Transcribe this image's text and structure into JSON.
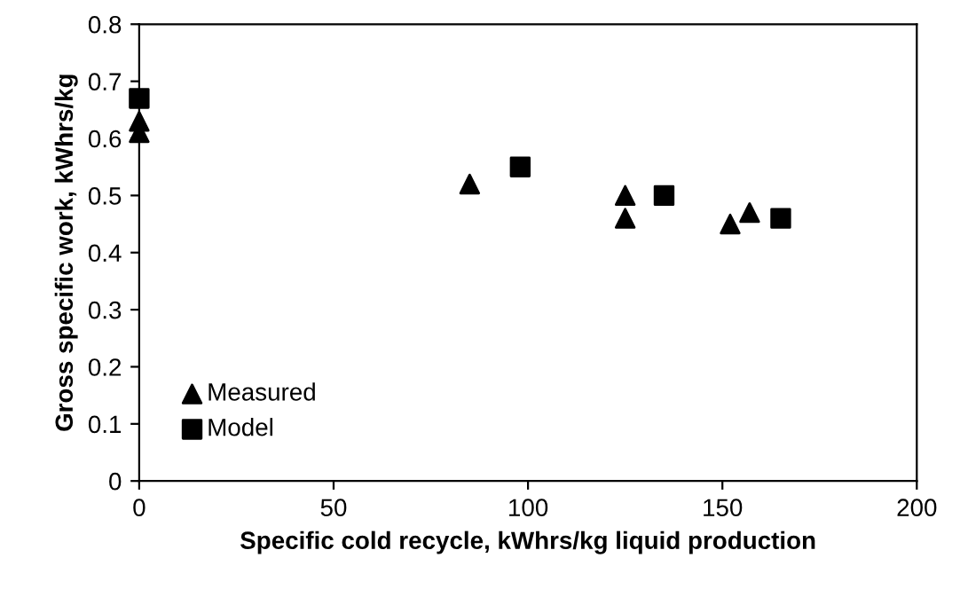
{
  "chart_data": {
    "type": "scatter",
    "xlabel": "Specific cold recycle, kWhrs/kg liquid production",
    "ylabel": "Gross specific work, kWhrs/kg",
    "series": [
      {
        "name": "Measured",
        "color": "#000000",
        "marker": "triangle",
        "x": [
          0,
          0,
          85,
          125,
          125,
          152,
          157
        ],
        "values": [
          0.63,
          0.61,
          0.52,
          0.5,
          0.46,
          0.45,
          0.47
        ]
      },
      {
        "name": "Model",
        "color": "#000000",
        "marker": "square",
        "x": [
          0,
          98,
          135,
          165
        ],
        "values": [
          0.67,
          0.55,
          0.5,
          0.46
        ]
      }
    ],
    "xlim": [
      0,
      200
    ],
    "xticks": [
      0,
      50,
      100,
      150,
      200
    ],
    "ylim": [
      0,
      0.8
    ],
    "yticks": [
      0,
      0.1,
      0.2,
      0.3,
      0.4,
      0.5,
      0.6,
      0.7,
      0.8
    ],
    "grid": false,
    "legend": "bottom left"
  }
}
